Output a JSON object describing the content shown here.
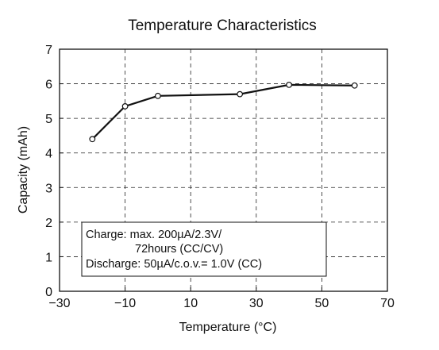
{
  "chart_data": {
    "type": "line",
    "title": "Temperature Characteristics",
    "xlabel": "Temperature (°C)",
    "ylabel": "Capacity (mAh)",
    "xlim": [
      -30,
      70
    ],
    "ylim": [
      0,
      7
    ],
    "xticks": [
      -30,
      -10,
      10,
      30,
      50,
      70
    ],
    "yticks": [
      0,
      1,
      2,
      3,
      4,
      5,
      6,
      7
    ],
    "grid": true,
    "series": [
      {
        "x": [
          -20,
          -10,
          0,
          25,
          40,
          60
        ],
        "y": [
          4.4,
          5.35,
          5.65,
          5.7,
          5.97,
          5.95
        ]
      }
    ],
    "annotation": {
      "lines": [
        "Charge: max. 200µA/2.3V/",
        "72hours (CC/CV)",
        "Discharge: 50µA/c.o.v.= 1.0V (CC)"
      ]
    }
  }
}
